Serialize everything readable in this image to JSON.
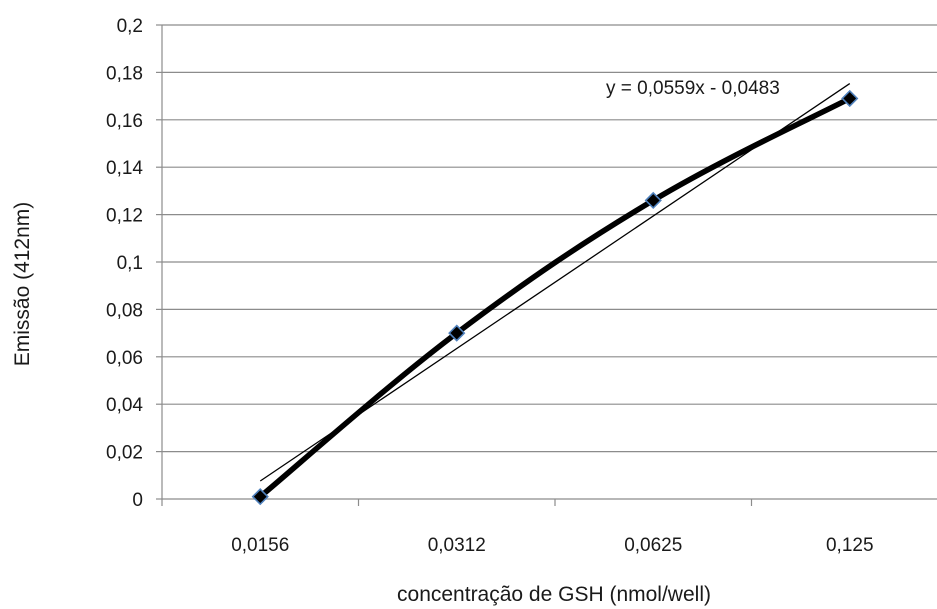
{
  "chart_data": {
    "type": "line",
    "categories": [
      "0,0156",
      "0,0312",
      "0,0625",
      "0,125"
    ],
    "x_positions": [
      1,
      2,
      3,
      4
    ],
    "series": [
      {
        "values": [
          0.001,
          0.07,
          0.126,
          0.169
        ]
      }
    ],
    "trendline": {
      "type": "linear",
      "slope": 0.0559,
      "intercept": -0.0483,
      "label": "y = 0,0559x - 0,0483"
    },
    "ylabel": "Emissão (412nm)",
    "xlabel": "concentração de GSH (nmol/well)",
    "ylim": [
      0,
      0.2
    ],
    "yticks": [
      0,
      0.02,
      0.04,
      0.06,
      0.08,
      0.1,
      0.12,
      0.14,
      0.16,
      0.18,
      0.2
    ],
    "ytick_labels": [
      "0",
      "0,02",
      "0,04",
      "0,06",
      "0,08",
      "0,1",
      "0,12",
      "0,14",
      "0,16",
      "0,18",
      "0,2"
    ],
    "grid": true,
    "legend": "none",
    "colors": {
      "series": "#000000",
      "trendline": "#000000",
      "marker_fill": "#000000",
      "marker_stroke": "#4f81bd",
      "grid": "#8c8c8c"
    }
  }
}
